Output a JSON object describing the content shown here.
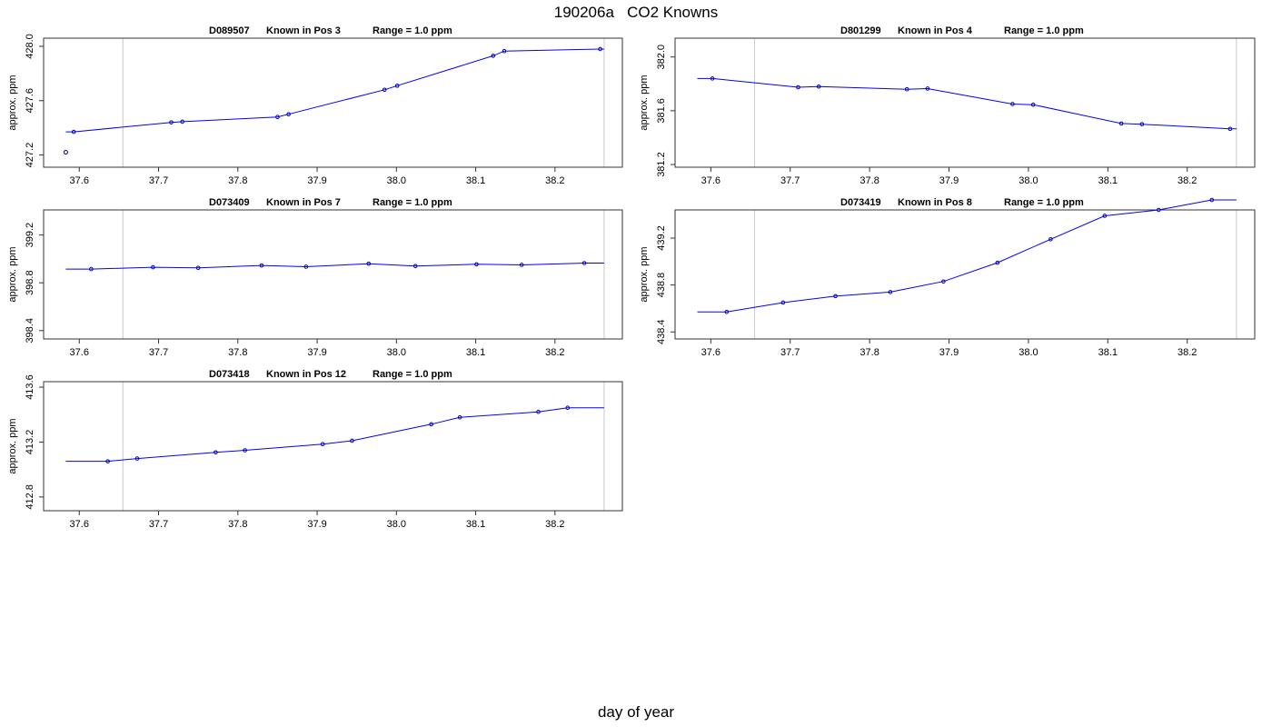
{
  "figure": {
    "title": "190206a   CO2 Knowns",
    "xlabel": "day of year"
  },
  "chart_data": [
    {
      "type": "line",
      "id": "D089507",
      "title_parts": [
        "D089507",
        "Known in Pos 3",
        "Range = 1.0 ppm"
      ],
      "xlabel": "day of year",
      "ylabel": "approx. ppm",
      "xlim": [
        37.555,
        38.285
      ],
      "ylim": [
        427.11,
        428.06
      ],
      "xticks": [
        37.6,
        37.7,
        37.8,
        37.9,
        38.0,
        38.1,
        38.2
      ],
      "xtick_labels": [
        "37.6",
        "37.7",
        "37.8",
        "37.9",
        "38.0",
        "38.1",
        "38.2"
      ],
      "yticks": [
        427.2,
        427.6,
        428.0
      ],
      "ytick_labels": [
        "427.2",
        "427.6",
        "428.0"
      ],
      "vlines": [
        37.655,
        38.262
      ],
      "line_start": 37.583,
      "line_end": 38.262,
      "points": [
        {
          "x": 37.593,
          "y": 427.37
        },
        {
          "x": 37.716,
          "y": 427.44
        },
        {
          "x": 37.73,
          "y": 427.445
        },
        {
          "x": 37.85,
          "y": 427.48
        },
        {
          "x": 37.864,
          "y": 427.5
        },
        {
          "x": 37.985,
          "y": 427.68
        },
        {
          "x": 38.001,
          "y": 427.71
        },
        {
          "x": 38.122,
          "y": 427.93
        },
        {
          "x": 38.136,
          "y": 427.965
        },
        {
          "x": 38.257,
          "y": 427.98
        }
      ],
      "stray_points": [
        {
          "x": 37.583,
          "y": 427.22
        }
      ]
    },
    {
      "type": "line",
      "id": "D801299",
      "title_parts": [
        "D801299",
        "Known in Pos 4",
        "Range = 1.0 ppm"
      ],
      "xlabel": "day of year",
      "ylabel": "approx. ppm",
      "xlim": [
        37.555,
        38.285
      ],
      "ylim": [
        381.18,
        382.14
      ],
      "xticks": [
        37.6,
        37.7,
        37.8,
        37.9,
        38.0,
        38.1,
        38.2
      ],
      "xtick_labels": [
        "37.6",
        "37.7",
        "37.8",
        "37.9",
        "38.0",
        "38.1",
        "38.2"
      ],
      "yticks": [
        381.2,
        381.6,
        382.0
      ],
      "ytick_labels": [
        "381.2",
        "381.6",
        "382.0"
      ],
      "vlines": [
        37.655,
        38.262
      ],
      "line_start": 37.583,
      "line_end": 38.262,
      "points": [
        {
          "x": 37.602,
          "y": 381.84
        },
        {
          "x": 37.71,
          "y": 381.775
        },
        {
          "x": 37.736,
          "y": 381.78
        },
        {
          "x": 37.847,
          "y": 381.76
        },
        {
          "x": 37.873,
          "y": 381.765
        },
        {
          "x": 37.98,
          "y": 381.65
        },
        {
          "x": 38.006,
          "y": 381.645
        },
        {
          "x": 38.117,
          "y": 381.505
        },
        {
          "x": 38.143,
          "y": 381.5
        },
        {
          "x": 38.254,
          "y": 381.465
        }
      ],
      "stray_points": []
    },
    {
      "type": "line",
      "id": "D073409",
      "title_parts": [
        "D073409",
        "Known in Pos 7",
        "Range = 1.0 ppm"
      ],
      "xlabel": "day of year",
      "ylabel": "approx. ppm",
      "xlim": [
        37.555,
        38.285
      ],
      "ylim": [
        398.33,
        399.41
      ],
      "xticks": [
        37.6,
        37.7,
        37.8,
        37.9,
        38.0,
        38.1,
        38.2
      ],
      "xtick_labels": [
        "37.6",
        "37.7",
        "37.8",
        "37.9",
        "38.0",
        "38.1",
        "38.2"
      ],
      "yticks": [
        398.4,
        398.8,
        399.2
      ],
      "ytick_labels": [
        "398.4",
        "398.8",
        "399.2"
      ],
      "vlines": [
        37.655,
        38.262
      ],
      "line_start": 37.583,
      "line_end": 38.262,
      "points": [
        {
          "x": 37.615,
          "y": 398.915
        },
        {
          "x": 37.693,
          "y": 398.93
        },
        {
          "x": 37.75,
          "y": 398.925
        },
        {
          "x": 37.83,
          "y": 398.945
        },
        {
          "x": 37.886,
          "y": 398.935
        },
        {
          "x": 37.965,
          "y": 398.96
        },
        {
          "x": 38.024,
          "y": 398.94
        },
        {
          "x": 38.101,
          "y": 398.955
        },
        {
          "x": 38.158,
          "y": 398.95
        },
        {
          "x": 38.237,
          "y": 398.965
        }
      ],
      "stray_points": []
    },
    {
      "type": "line",
      "id": "D073419",
      "title_parts": [
        "D073419",
        "Known in Pos 8",
        "Range = 1.0 ppm"
      ],
      "xlabel": "day of year",
      "ylabel": "approx. ppm",
      "xlim": [
        37.555,
        38.285
      ],
      "ylim": [
        438.34,
        439.44
      ],
      "xticks": [
        37.6,
        37.7,
        37.8,
        37.9,
        38.0,
        38.1,
        38.2
      ],
      "xtick_labels": [
        "37.6",
        "37.7",
        "37.8",
        "37.9",
        "38.0",
        "38.1",
        "38.2"
      ],
      "yticks": [
        438.4,
        438.8,
        439.2
      ],
      "ytick_labels": [
        "438.4",
        "438.8",
        "439.2"
      ],
      "vlines": [
        37.655,
        38.262
      ],
      "line_start": 37.583,
      "line_end": 38.262,
      "points": [
        {
          "x": 37.62,
          "y": 438.57
        },
        {
          "x": 37.691,
          "y": 438.65
        },
        {
          "x": 37.757,
          "y": 438.705
        },
        {
          "x": 37.826,
          "y": 438.74
        },
        {
          "x": 37.893,
          "y": 438.83
        },
        {
          "x": 37.961,
          "y": 438.99
        },
        {
          "x": 38.028,
          "y": 439.19
        },
        {
          "x": 38.096,
          "y": 439.39
        },
        {
          "x": 38.164,
          "y": 439.44
        },
        {
          "x": 38.231,
          "y": 439.525
        }
      ],
      "stray_points": []
    },
    {
      "type": "line",
      "id": "D073418",
      "title_parts": [
        "D073418",
        "Known in Pos 12",
        "Range = 1.0 ppm"
      ],
      "xlabel": "day of year",
      "ylabel": "approx. ppm",
      "xlim": [
        37.555,
        38.285
      ],
      "ylim": [
        412.7,
        413.64
      ],
      "xticks": [
        37.6,
        37.7,
        37.8,
        37.9,
        38.0,
        38.1,
        38.2
      ],
      "xtick_labels": [
        "37.6",
        "37.7",
        "37.8",
        "37.9",
        "38.0",
        "38.1",
        "38.2"
      ],
      "yticks": [
        412.8,
        413.2,
        413.6
      ],
      "ytick_labels": [
        "412.8",
        "413.2",
        "413.6"
      ],
      "vlines": [
        37.655,
        38.262
      ],
      "line_start": 37.583,
      "line_end": 38.262,
      "points": [
        {
          "x": 37.636,
          "y": 413.06
        },
        {
          "x": 37.673,
          "y": 413.08
        },
        {
          "x": 37.772,
          "y": 413.125
        },
        {
          "x": 37.809,
          "y": 413.14
        },
        {
          "x": 37.907,
          "y": 413.185
        },
        {
          "x": 37.944,
          "y": 413.21
        },
        {
          "x": 38.044,
          "y": 413.33
        },
        {
          "x": 38.08,
          "y": 413.38
        },
        {
          "x": 38.179,
          "y": 413.42
        },
        {
          "x": 38.216,
          "y": 413.45
        }
      ],
      "stray_points": []
    }
  ]
}
